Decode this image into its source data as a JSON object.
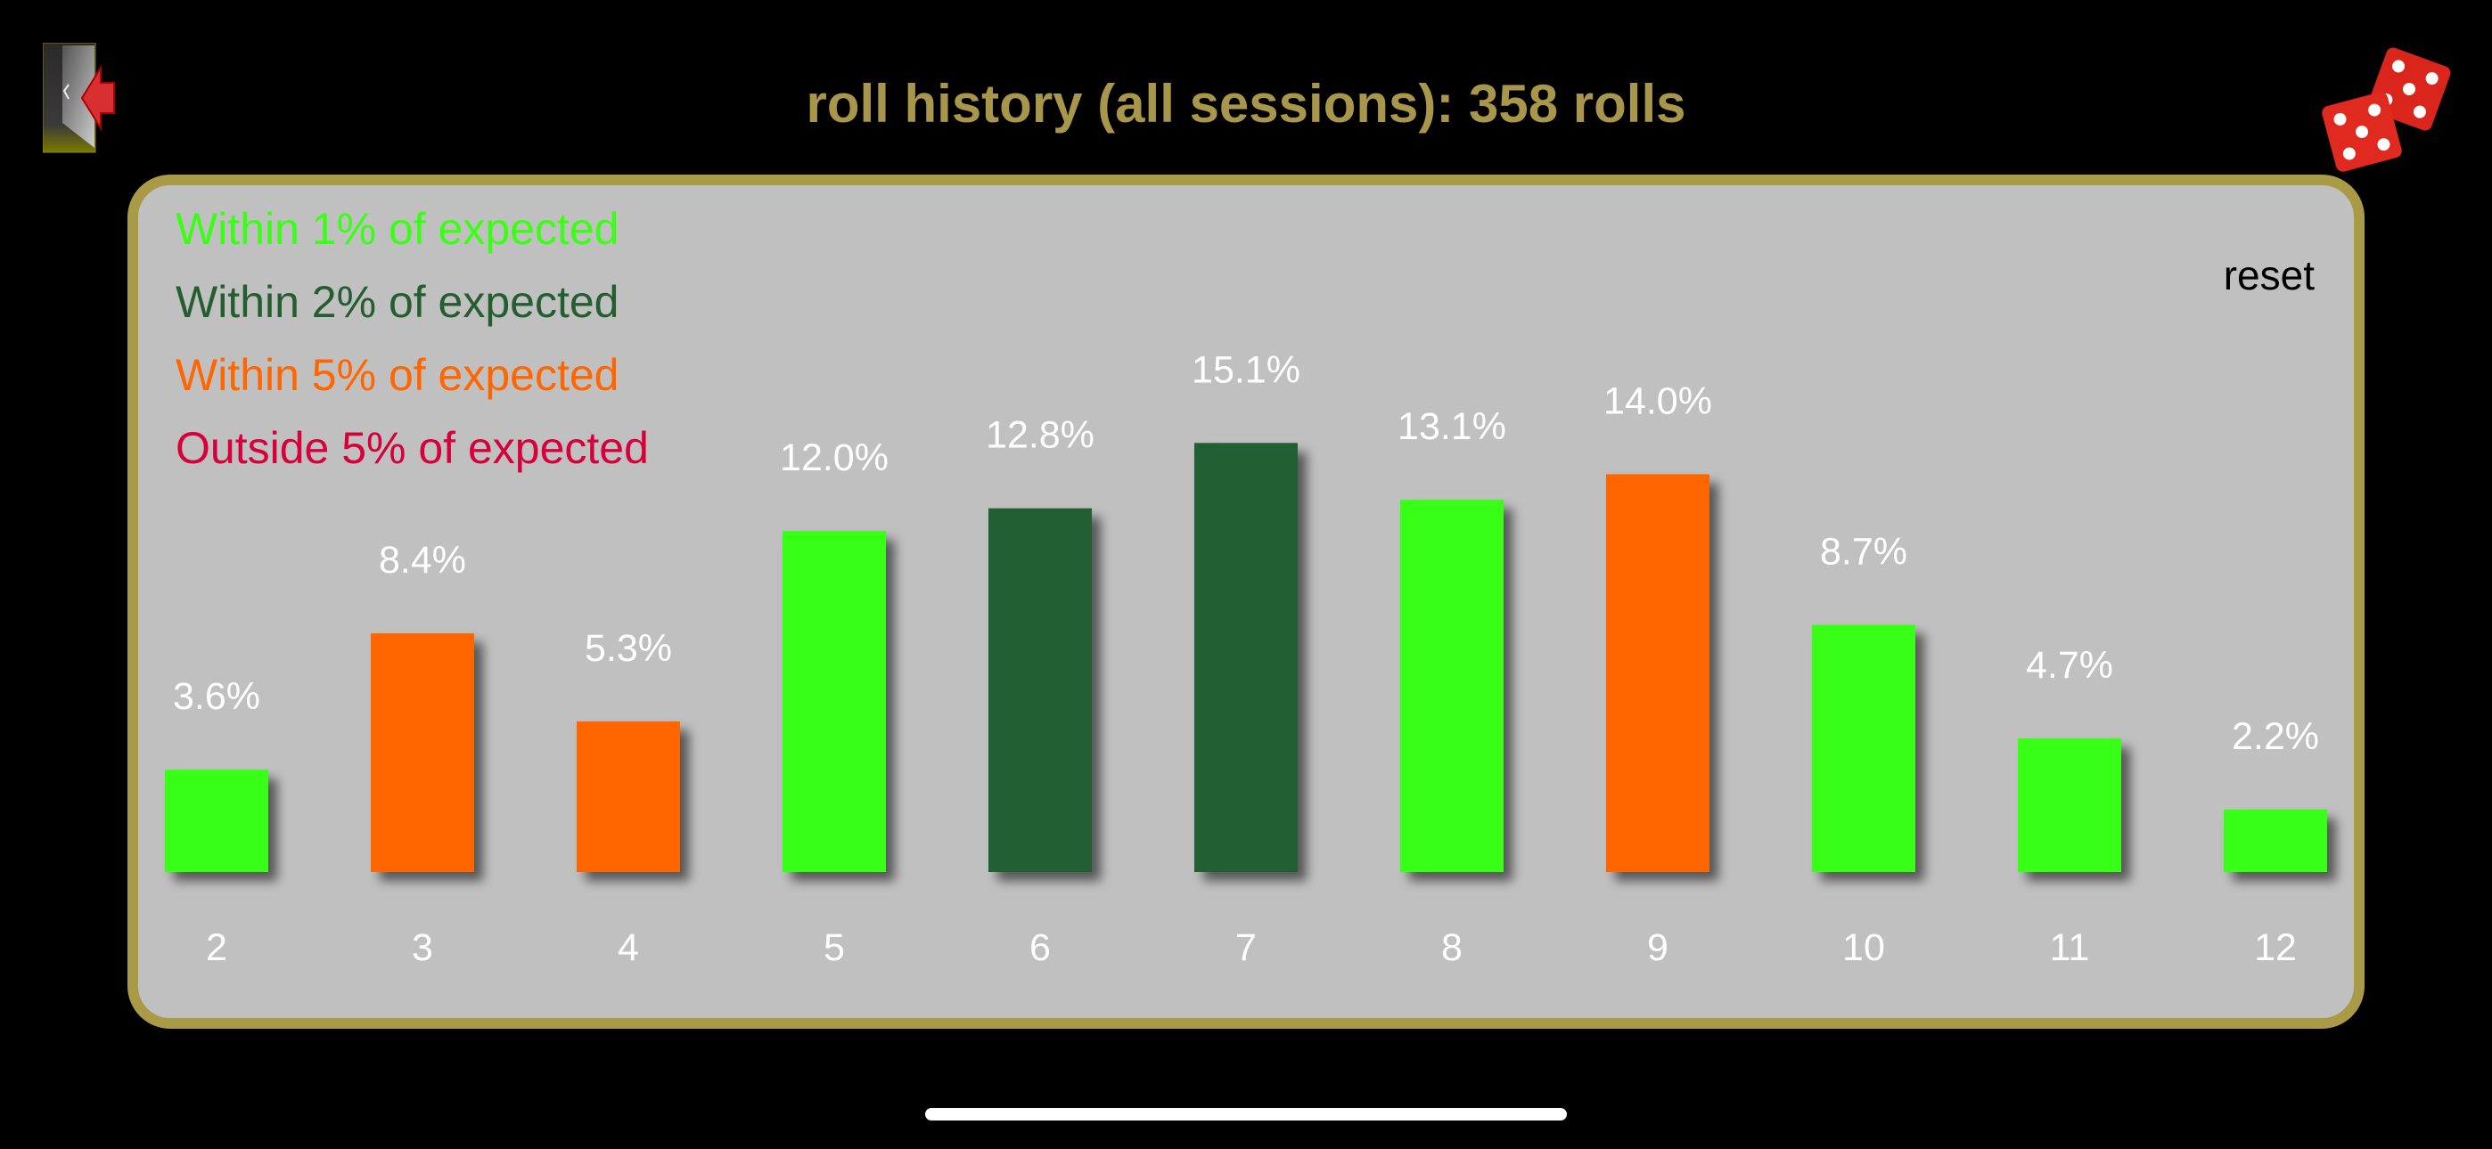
{
  "header": {
    "title": "roll history (all sessions): 358 rolls",
    "back_icon": "door-exit-arrow-icon",
    "dice_icon": "red-dice-icon"
  },
  "panel": {
    "reset_label": "reset",
    "legend": [
      {
        "label": "Within 1% of expected",
        "color": "#39ff14"
      },
      {
        "label": "Within 2% of expected",
        "color": "#245e30"
      },
      {
        "label": "Within 5% of expected",
        "color": "#ff6600"
      },
      {
        "label": "Outside 5% of expected",
        "color": "#d6003a"
      }
    ]
  },
  "chart_data": {
    "type": "bar",
    "title": "",
    "xlabel": "",
    "ylabel": "",
    "categories": [
      "2",
      "3",
      "4",
      "5",
      "6",
      "7",
      "8",
      "9",
      "10",
      "11",
      "12"
    ],
    "values": [
      3.6,
      8.4,
      5.3,
      12.0,
      12.8,
      15.1,
      13.1,
      14.0,
      8.7,
      4.7,
      2.2
    ],
    "labels": [
      "3.6%",
      "8.4%",
      "5.3%",
      "12.0%",
      "12.8%",
      "15.1%",
      "13.1%",
      "14.0%",
      "8.7%",
      "4.7%",
      "2.2%"
    ],
    "status": [
      "within1",
      "within5",
      "within5",
      "within1",
      "within2",
      "within2",
      "within1",
      "within5",
      "within1",
      "within1",
      "within1"
    ],
    "status_colors": {
      "within1": "#39ff14",
      "within2": "#245e30",
      "within5": "#ff6600",
      "outside5": "#d6003a"
    },
    "unit": "%",
    "grid": false
  }
}
